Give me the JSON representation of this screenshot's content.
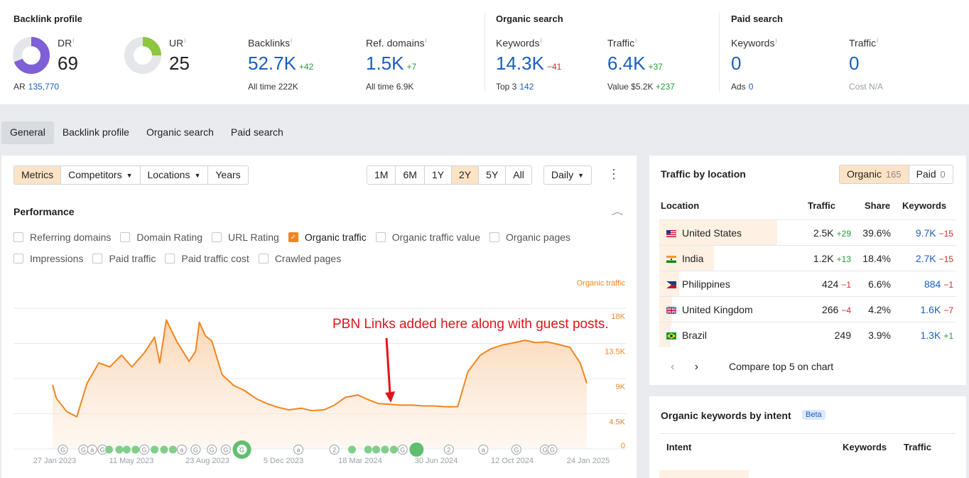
{
  "summary": {
    "backlink_profile": {
      "title": "Backlink profile",
      "dr": {
        "label": "DR",
        "value": "69",
        "ratio": 0.69
      },
      "ur": {
        "label": "UR",
        "value": "25",
        "ratio": 0.25
      },
      "ar": {
        "label": "AR",
        "value": "135,770"
      },
      "backlinks": {
        "label": "Backlinks",
        "value": "52.7K",
        "delta": "+42",
        "sub_label": "All time",
        "sub_value": "222K"
      },
      "ref_domains": {
        "label": "Ref. domains",
        "value": "1.5K",
        "delta": "+7",
        "sub_label": "All time",
        "sub_value": "6.9K"
      }
    },
    "organic_search": {
      "title": "Organic search",
      "keywords": {
        "label": "Keywords",
        "value": "14.3K",
        "delta": "−41",
        "sub_label": "Top 3",
        "sub_value": "142"
      },
      "traffic": {
        "label": "Traffic",
        "value": "6.4K",
        "delta": "+37",
        "sub_label": "Value",
        "sub_value": "$5.2K",
        "sub_delta": "+237"
      }
    },
    "paid_search": {
      "title": "Paid search",
      "keywords": {
        "label": "Keywords",
        "value": "0",
        "sub_label": "Ads",
        "sub_value": "0"
      },
      "traffic": {
        "label": "Traffic",
        "value": "0",
        "sub_label": "Cost",
        "sub_value": "N/A"
      }
    },
    "info_mark": "i"
  },
  "tabs": [
    {
      "label": "General",
      "active": true
    },
    {
      "label": "Backlink profile"
    },
    {
      "label": "Organic search"
    },
    {
      "label": "Paid search"
    }
  ],
  "toolbar": {
    "view_tabs": [
      {
        "label": "Metrics",
        "active": true
      },
      {
        "label": "Competitors",
        "dropdown": true
      },
      {
        "label": "Locations",
        "dropdown": true
      },
      {
        "label": "Years"
      }
    ],
    "ranges": [
      {
        "label": "1M"
      },
      {
        "label": "6M"
      },
      {
        "label": "1Y"
      },
      {
        "label": "2Y",
        "active": true
      },
      {
        "label": "5Y"
      },
      {
        "label": "All"
      }
    ],
    "interval": "Daily",
    "more_icon": "⋮"
  },
  "performance": {
    "title": "Performance",
    "checkbox_rows": [
      [
        {
          "label": "Referring domains",
          "checked": false
        },
        {
          "label": "Domain Rating",
          "checked": false
        },
        {
          "label": "URL Rating",
          "checked": false
        },
        {
          "label": "Organic traffic",
          "checked": true
        },
        {
          "label": "Organic traffic value",
          "checked": false
        },
        {
          "label": "Organic pages",
          "checked": false
        }
      ],
      [
        {
          "label": "Impressions",
          "checked": false
        },
        {
          "label": "Paid traffic",
          "checked": false
        },
        {
          "label": "Paid traffic cost",
          "checked": false
        },
        {
          "label": "Crawled pages",
          "checked": false
        }
      ]
    ]
  },
  "chart_data": {
    "type": "area",
    "series": [
      {
        "name": "Organic traffic",
        "color": "#f2851f"
      }
    ],
    "x": [
      "2023-01-27",
      "2023-02-01",
      "2023-02-15",
      "2023-03-01",
      "2023-03-15",
      "2023-03-31",
      "2023-04-15",
      "2023-05-01",
      "2023-05-15",
      "2023-06-01",
      "2023-06-15",
      "2023-06-22",
      "2023-07-01",
      "2023-07-15",
      "2023-08-01",
      "2023-08-10",
      "2023-08-15",
      "2023-08-23",
      "2023-09-01",
      "2023-09-15",
      "2023-10-01",
      "2023-10-15",
      "2023-11-01",
      "2023-11-15",
      "2023-12-01",
      "2023-12-15",
      "2024-01-01",
      "2024-01-15",
      "2024-02-01",
      "2024-02-15",
      "2024-03-01",
      "2024-03-18",
      "2024-04-01",
      "2024-04-15",
      "2024-05-01",
      "2024-05-15",
      "2024-06-01",
      "2024-06-15",
      "2024-06-30",
      "2024-07-15",
      "2024-08-01",
      "2024-08-15",
      "2024-09-01",
      "2024-09-15",
      "2024-10-01",
      "2024-10-12",
      "2024-11-01",
      "2024-11-15",
      "2024-12-01",
      "2024-12-15",
      "2025-01-01",
      "2025-01-15",
      "2025-01-24"
    ],
    "values": [
      8200,
      6500,
      4800,
      4100,
      8400,
      11000,
      10500,
      12000,
      10500,
      12300,
      14300,
      11000,
      16500,
      13800,
      11200,
      12500,
      16200,
      14500,
      13800,
      9500,
      8100,
      7500,
      6400,
      5800,
      5300,
      5000,
      5200,
      4900,
      5000,
      5600,
      6600,
      6900,
      6300,
      5800,
      5700,
      5600,
      5600,
      5500,
      5500,
      5400,
      5400,
      9900,
      12000,
      12800,
      13300,
      13500,
      13900,
      13600,
      13700,
      13400,
      13000,
      11000,
      8400
    ],
    "yticks": [
      "18K",
      "13.5K",
      "9K",
      "4.5K",
      "0"
    ],
    "ylim": [
      0,
      18000
    ],
    "xticks": [
      "27 Jan 2023",
      "11 May 2023",
      "23 Aug 2023",
      "5 Dec 2023",
      "18 Mar 2024",
      "30 Jun 2024",
      "12 Oct 2024",
      "24 Jan 2025"
    ],
    "axis_label": "Organic traffic",
    "annotation": {
      "text": "PBN Links added here along with guest posts.",
      "x": "2024-05-01",
      "color": "#e0141b"
    },
    "grid": true,
    "markers": [
      {
        "x": "2023-02-10",
        "kind": "G"
      },
      {
        "x": "2023-03-10",
        "kind": "G"
      },
      {
        "x": "2023-03-22",
        "kind": "a"
      },
      {
        "x": "2023-04-05",
        "kind": "G"
      },
      {
        "x": "2023-04-14",
        "kind": "dot"
      },
      {
        "x": "2023-04-28",
        "kind": "dot"
      },
      {
        "x": "2023-05-08",
        "kind": "dot"
      },
      {
        "x": "2023-05-20",
        "kind": "dot"
      },
      {
        "x": "2023-06-01",
        "kind": "G"
      },
      {
        "x": "2023-06-15",
        "kind": "dot"
      },
      {
        "x": "2023-06-28",
        "kind": "dot"
      },
      {
        "x": "2023-07-10",
        "kind": "dot"
      },
      {
        "x": "2023-07-22",
        "kind": "a"
      },
      {
        "x": "2023-08-10",
        "kind": "G"
      },
      {
        "x": "2023-09-01",
        "kind": "G"
      },
      {
        "x": "2023-09-20",
        "kind": "G"
      },
      {
        "x": "2023-10-12",
        "kind": "bigG"
      },
      {
        "x": "2023-12-28",
        "kind": "a"
      },
      {
        "x": "2024-02-15",
        "kind": "2"
      },
      {
        "x": "2024-03-10",
        "kind": "dot"
      },
      {
        "x": "2024-04-01",
        "kind": "dot"
      },
      {
        "x": "2024-04-12",
        "kind": "dot"
      },
      {
        "x": "2024-04-24",
        "kind": "dot"
      },
      {
        "x": "2024-05-06",
        "kind": "dot"
      },
      {
        "x": "2024-05-18",
        "kind": "G"
      },
      {
        "x": "2024-06-06",
        "kind": "bigdot"
      },
      {
        "x": "2024-07-20",
        "kind": "2"
      },
      {
        "x": "2024-09-05",
        "kind": "a"
      },
      {
        "x": "2024-10-20",
        "kind": "G"
      },
      {
        "x": "2024-11-28",
        "kind": "G"
      },
      {
        "x": "2024-12-08",
        "kind": "G"
      }
    ]
  },
  "traffic_by_location": {
    "title": "Traffic by location",
    "toggle": [
      {
        "label": "Organic",
        "count": "165",
        "active": true
      },
      {
        "label": "Paid",
        "count": "0"
      }
    ],
    "columns": [
      "Location",
      "Traffic",
      "Share",
      "Keywords"
    ],
    "rows": [
      {
        "flag": "us-flag-icon",
        "location": "United States",
        "traffic": "2.5K",
        "traffic_delta": "+29",
        "traffic_dir": "pos",
        "share": "39.6%",
        "share_value": 39.6,
        "keywords": "9.7K",
        "kw_delta": "−15",
        "kw_dir": "neg"
      },
      {
        "flag": "in-flag-icon",
        "location": "India",
        "traffic": "1.2K",
        "traffic_delta": "+13",
        "traffic_dir": "pos",
        "share": "18.4%",
        "share_value": 18.4,
        "keywords": "2.7K",
        "kw_delta": "−15",
        "kw_dir": "neg"
      },
      {
        "flag": "ph-flag-icon",
        "location": "Philippines",
        "traffic": "424",
        "traffic_delta": "−1",
        "traffic_dir": "neg",
        "share": "6.6%",
        "share_value": 6.6,
        "keywords": "884",
        "kw_delta": "−1",
        "kw_dir": "neg"
      },
      {
        "flag": "gb-flag-icon",
        "location": "United Kingdom",
        "traffic": "266",
        "traffic_delta": "−4",
        "traffic_dir": "neg",
        "share": "4.2%",
        "share_value": 4.2,
        "keywords": "1.6K",
        "kw_delta": "−7",
        "kw_dir": "neg"
      },
      {
        "flag": "br-flag-icon",
        "location": "Brazil",
        "traffic": "249",
        "traffic_delta": "",
        "traffic_dir": "pos",
        "share": "3.9%",
        "share_value": 3.9,
        "keywords": "1.3K",
        "kw_delta": "+1",
        "kw_dir": "pos"
      }
    ],
    "compare_label": "Compare top 5 on chart",
    "prev_icon": "‹",
    "next_icon": "›"
  },
  "intent": {
    "title": "Organic keywords by intent",
    "badge": "Beta",
    "columns": [
      "Intent",
      "Keywords",
      "Traffic"
    ]
  },
  "colors": {
    "accent": "#f2851f",
    "link": "#1a5fbf",
    "positive": "#1f9d3a",
    "negative": "#d9262b",
    "dr_ring": "#7e5fd6",
    "ur_ring": "#8dc63f"
  }
}
